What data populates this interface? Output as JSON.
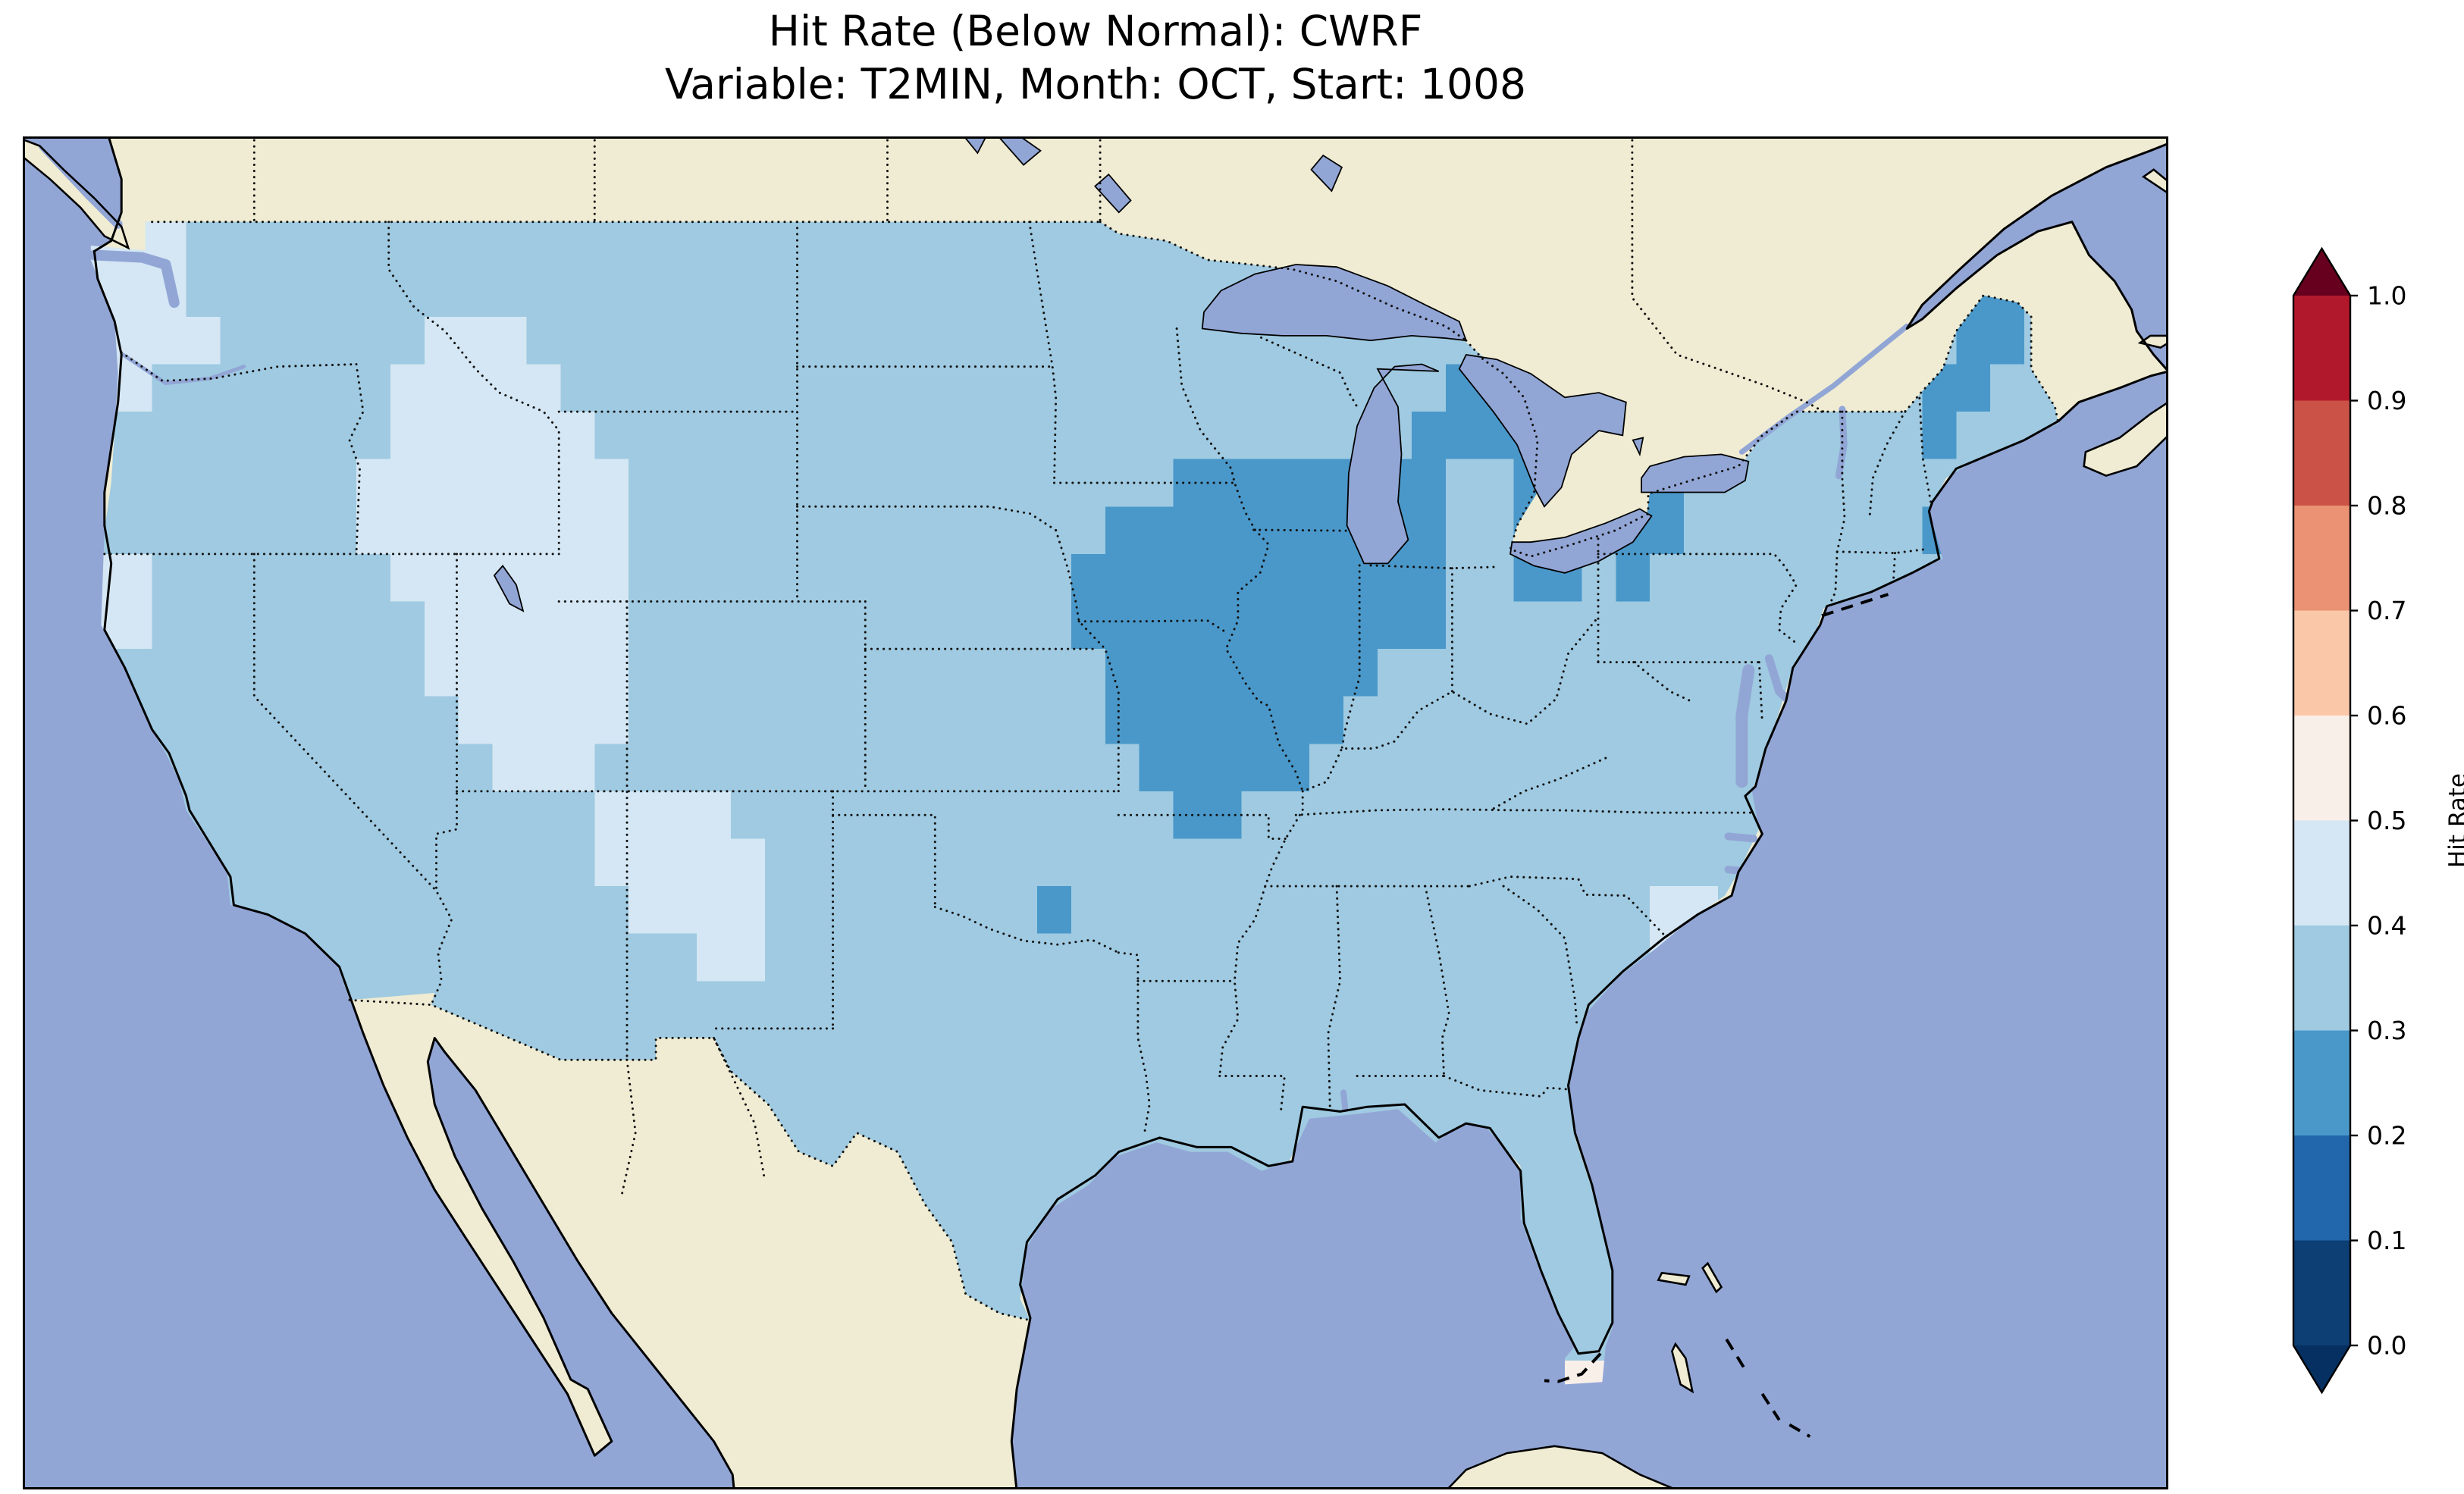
{
  "title": {
    "line1": "Hit Rate (Below Normal): CWRF",
    "line2": "Variable: T2MIN, Month: OCT, Start: 1008"
  },
  "colorbar": {
    "label": "Hit Rate",
    "ticks": [
      "0.0",
      "0.1",
      "0.2",
      "0.3",
      "0.4",
      "0.5",
      "0.6",
      "0.7",
      "0.8",
      "0.9",
      "1.0"
    ],
    "bins": [
      {
        "range": [
          0.0,
          0.1
        ],
        "color": "#0d3e74"
      },
      {
        "range": [
          0.1,
          0.2
        ],
        "color": "#2267ab"
      },
      {
        "range": [
          0.2,
          0.3
        ],
        "color": "#4a98ca"
      },
      {
        "range": [
          0.3,
          0.4
        ],
        "color": "#9fcae1"
      },
      {
        "range": [
          0.4,
          0.5
        ],
        "color": "#d5e7f4"
      },
      {
        "range": [
          0.5,
          0.6
        ],
        "color": "#f9efe9"
      },
      {
        "range": [
          0.6,
          0.7
        ],
        "color": "#fbc7a9"
      },
      {
        "range": [
          0.7,
          0.8
        ],
        "color": "#ea9273"
      },
      {
        "range": [
          0.8,
          0.9
        ],
        "color": "#cb5246"
      },
      {
        "range": [
          0.9,
          1.0
        ],
        "color": "#b2182b"
      }
    ],
    "under_color": "#053061",
    "over_color": "#67001f"
  },
  "map": {
    "ocean_color": "#92a6d6",
    "land_color": "#efecd3",
    "coastline_color": "#000000",
    "border_line_style": "dotted"
  },
  "chart_data": {
    "type": "heatmap",
    "title": "Hit Rate (Below Normal): CWRF",
    "subtitle": "Variable: T2MIN, Month: OCT, Start: 1008",
    "model": "CWRF",
    "category": "Below Normal",
    "variable": "T2MIN",
    "month": "OCT",
    "start": "1008",
    "colorbar_label": "Hit Rate",
    "value_range": [
      0.0,
      1.0
    ],
    "bin_width": 0.1,
    "region": "CONUS",
    "grid_origin_lonlat": [
      -125,
      50
    ],
    "grid_cell_degrees": 1,
    "value_key": {
      "2": 0.25,
      "3": 0.35,
      "4": 0.45,
      "5": 0.55
    },
    "cell_value_encoding": "Each character is one 1-degree cell; value is the colorbar bin midpoint estimated from the map (0.25 = 0.2-0.3, 0.35 = 0.3-0.4, 0.45 = 0.4-0.5, 0.55 = 0.5-0.6). Cells outside the CONUS boundary are clipped.",
    "grid_rows": [
      "333333333333333333333333333333333333333333333333333333333333",
      "444333333333333333333333333333333333333333333333333333333333",
      "444333333333333333333333333333333333333333333333333333322333",
      "444433333344433333333333333333333333333333333332223333322333",
      "443333333444443333333333333333333333333322222333333333223333",
      "333333333444444333333333333333333333333222222333333333233333",
      "333333334444444433333333333333332222222233222223333333333333",
      "333333334444444433333333333333222222222233222223333333233333",
      "443333333444444433333333333332222222222233223233333333333333",
      "443333333344444433333333333332222222222233333333333333333333",
      "333333333344444433333333333333222222223333333333333333333333",
      "333333333334444433333333333333222222233333333333333333333333",
      "333333333333444333333333333333322222333333333333333333333333",
      "333333333333333444433333333333332233333333333333333333333333",
      "333333333333333444443333333333333333333333333333333333333333",
      "333333333333333344443333333323333333333333333344333333333333",
      "333333333333333333443333333333333333333333333345333333333333",
      "333333333333333333333333333333333333333333333333333333333333",
      "333333333333333333333333333333333333333333333333333333333333",
      "333333333333333333333333333333333333333333333333333333333333",
      "333333333333333333333333333333333333333333333333333333333333",
      "333333333333333333333333333333333333333333333333333333333333",
      "333333333333333333333334333333333333333333333333333333333333",
      "333333333333333333333333333333333333333333333333333333333333",
      "333333333333333333333333333333333333333333333333333333333333",
      "333333333333333333333333333333333333333333355333333333333333",
      "333333333333333333333333333333333333333333333333333333333333",
      "333333333333333333333333333333333333333333333333333333333333"
    ]
  }
}
